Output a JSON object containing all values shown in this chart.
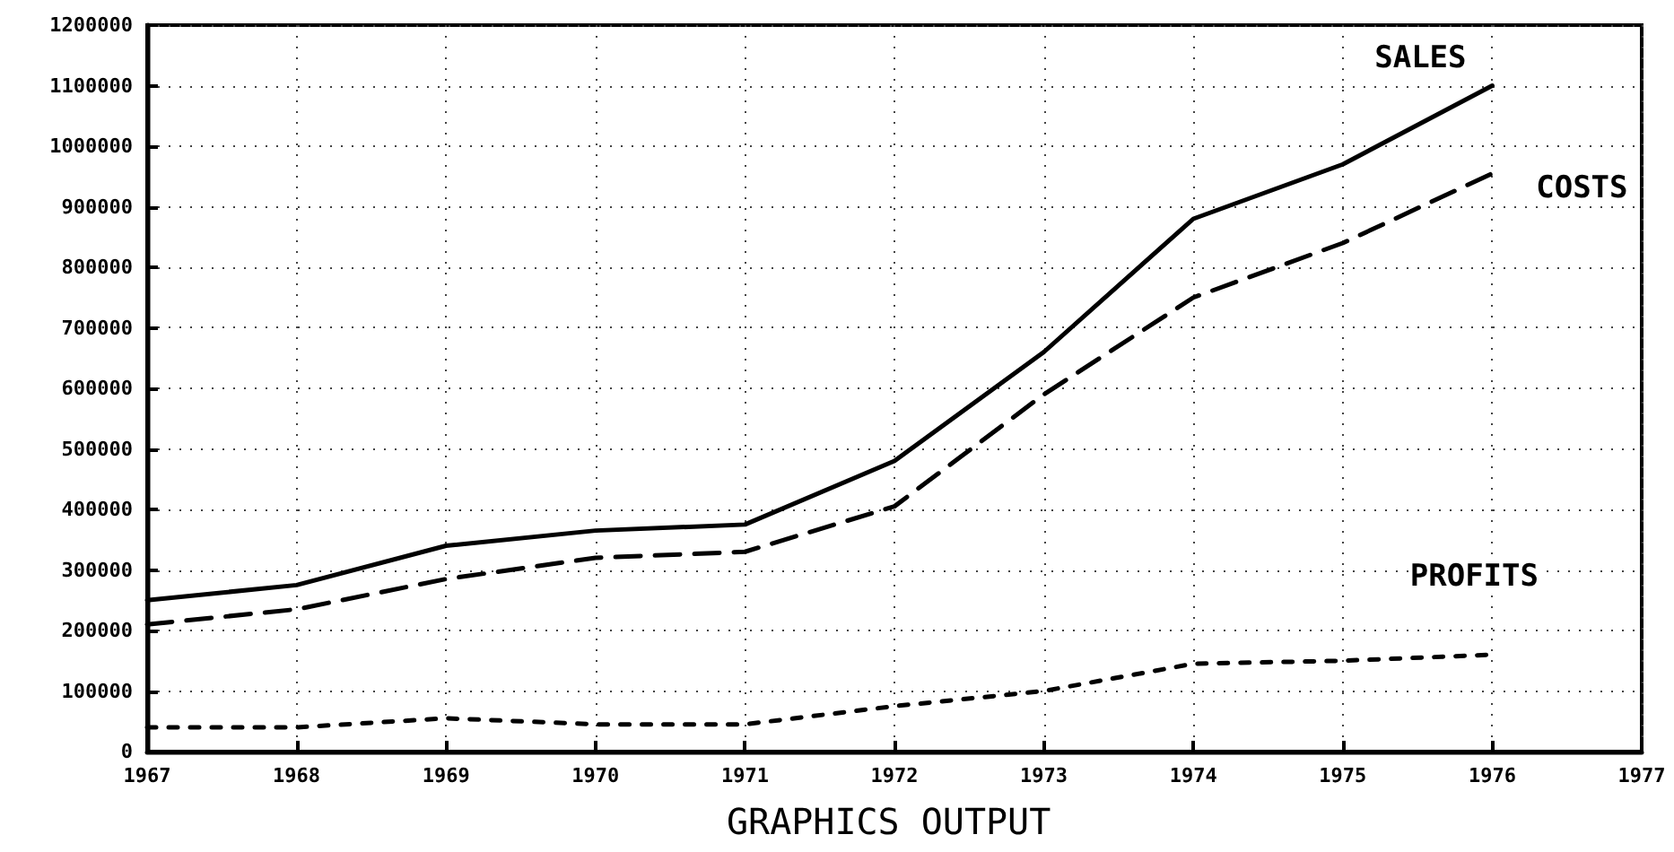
{
  "chart_data": {
    "type": "line",
    "title": "GRAPHICS OUTPUT",
    "x": [
      1967,
      1968,
      1969,
      1970,
      1971,
      1972,
      1973,
      1974,
      1975,
      1976
    ],
    "series": [
      {
        "name": "SALES",
        "color": "#000000",
        "line_style": "solid",
        "values": [
          250000,
          275000,
          340000,
          365000,
          375000,
          480000,
          660000,
          880000,
          970000,
          1100000
        ]
      },
      {
        "name": "COSTS",
        "color": "#000000",
        "line_style": "dashed",
        "values": [
          210000,
          235000,
          285000,
          320000,
          330000,
          405000,
          590000,
          750000,
          840000,
          955000
        ]
      },
      {
        "name": "PROFITS",
        "color": "#000000",
        "line_style": "dotted",
        "values": [
          40000,
          40000,
          55000,
          45000,
          45000,
          75000,
          100000,
          145000,
          150000,
          160000
        ]
      }
    ],
    "xlim": [
      1967,
      1977
    ],
    "xticks": [
      1967,
      1968,
      1969,
      1970,
      1971,
      1972,
      1973,
      1974,
      1975,
      1976,
      1977
    ],
    "ylim": [
      0,
      1200000
    ],
    "yticks": [
      0,
      100000,
      200000,
      300000,
      400000,
      500000,
      600000,
      700000,
      800000,
      900000,
      1000000,
      1100000,
      1200000
    ],
    "grid": true,
    "legend": false,
    "marker": "none"
  }
}
